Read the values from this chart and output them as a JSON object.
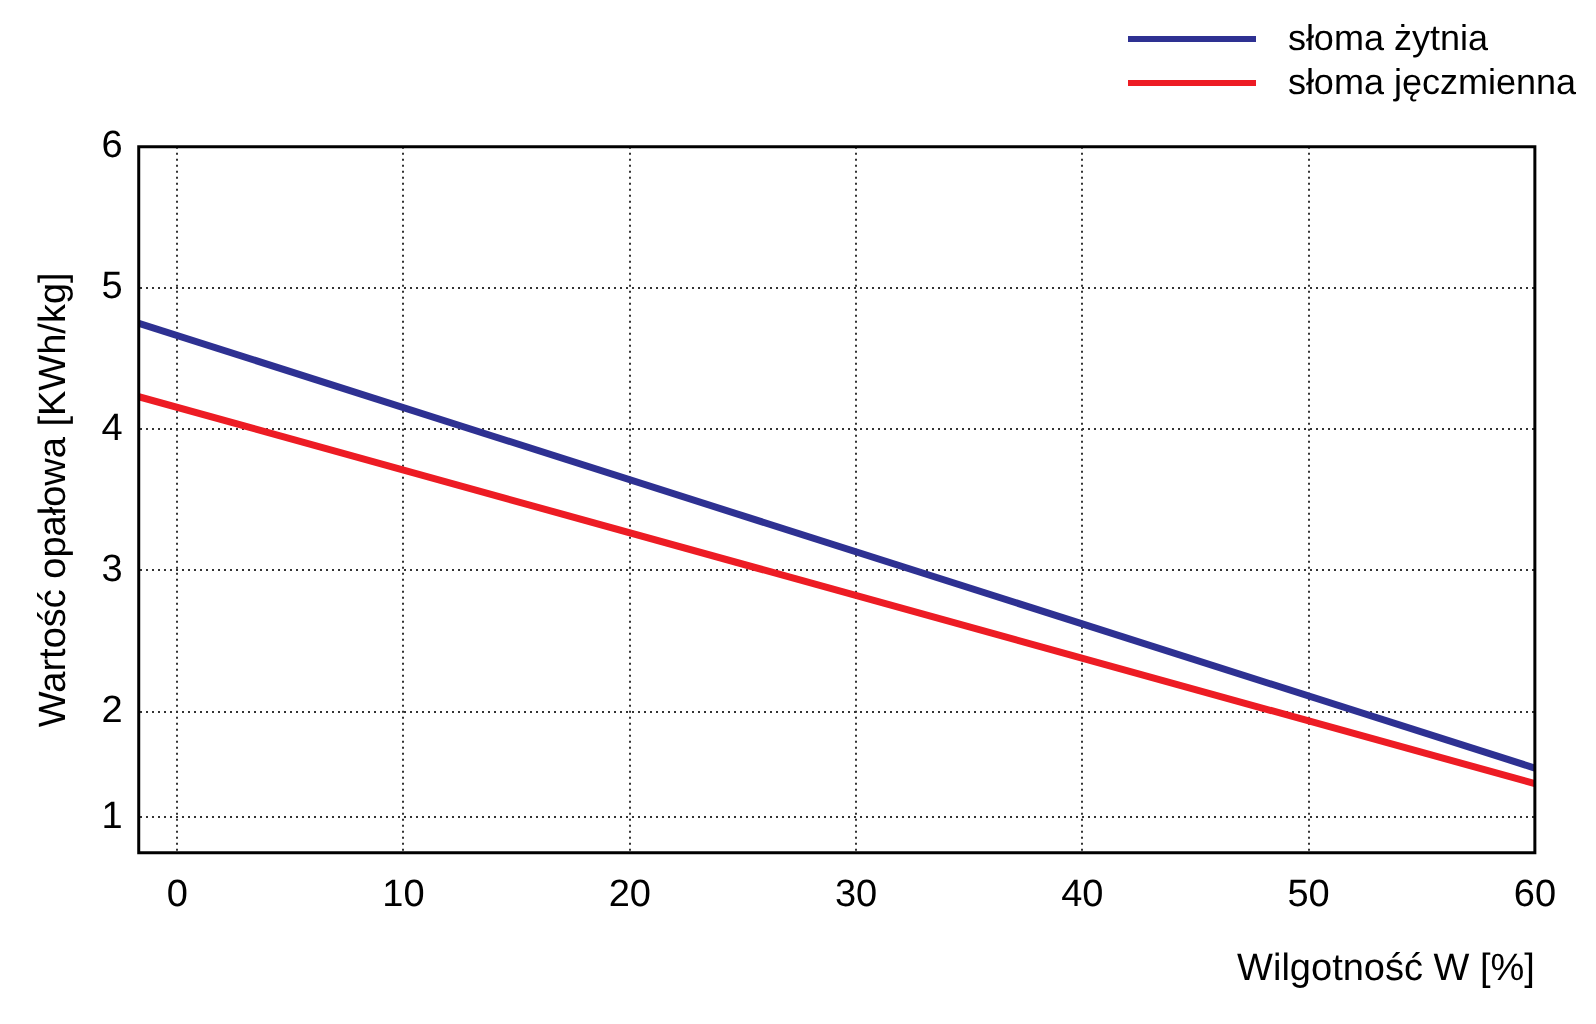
{
  "chart_data": {
    "type": "line",
    "xlabel": "Wilgotność W [%]",
    "ylabel": "Wartość opałowa [KWh/kg]",
    "x": [
      -1.7,
      60
    ],
    "series": [
      {
        "name": "słoma żytnia",
        "color": "#2e3192",
        "values": [
          4.75,
          1.6
        ]
      },
      {
        "name": "słoma jęczmienna",
        "color": "#ed1c24",
        "values": [
          4.23,
          1.49
        ]
      }
    ],
    "xlim": [
      -1.7,
      60
    ],
    "xticks": [
      0,
      10,
      20,
      30,
      40,
      50,
      60
    ],
    "ylim": [
      1,
      6
    ],
    "yticks": [
      {
        "value": 1.25,
        "label": "1"
      },
      2,
      3,
      4,
      5,
      6
    ],
    "grid": true,
    "legend": "top right",
    "marker": "none",
    "line_style": "solid"
  }
}
